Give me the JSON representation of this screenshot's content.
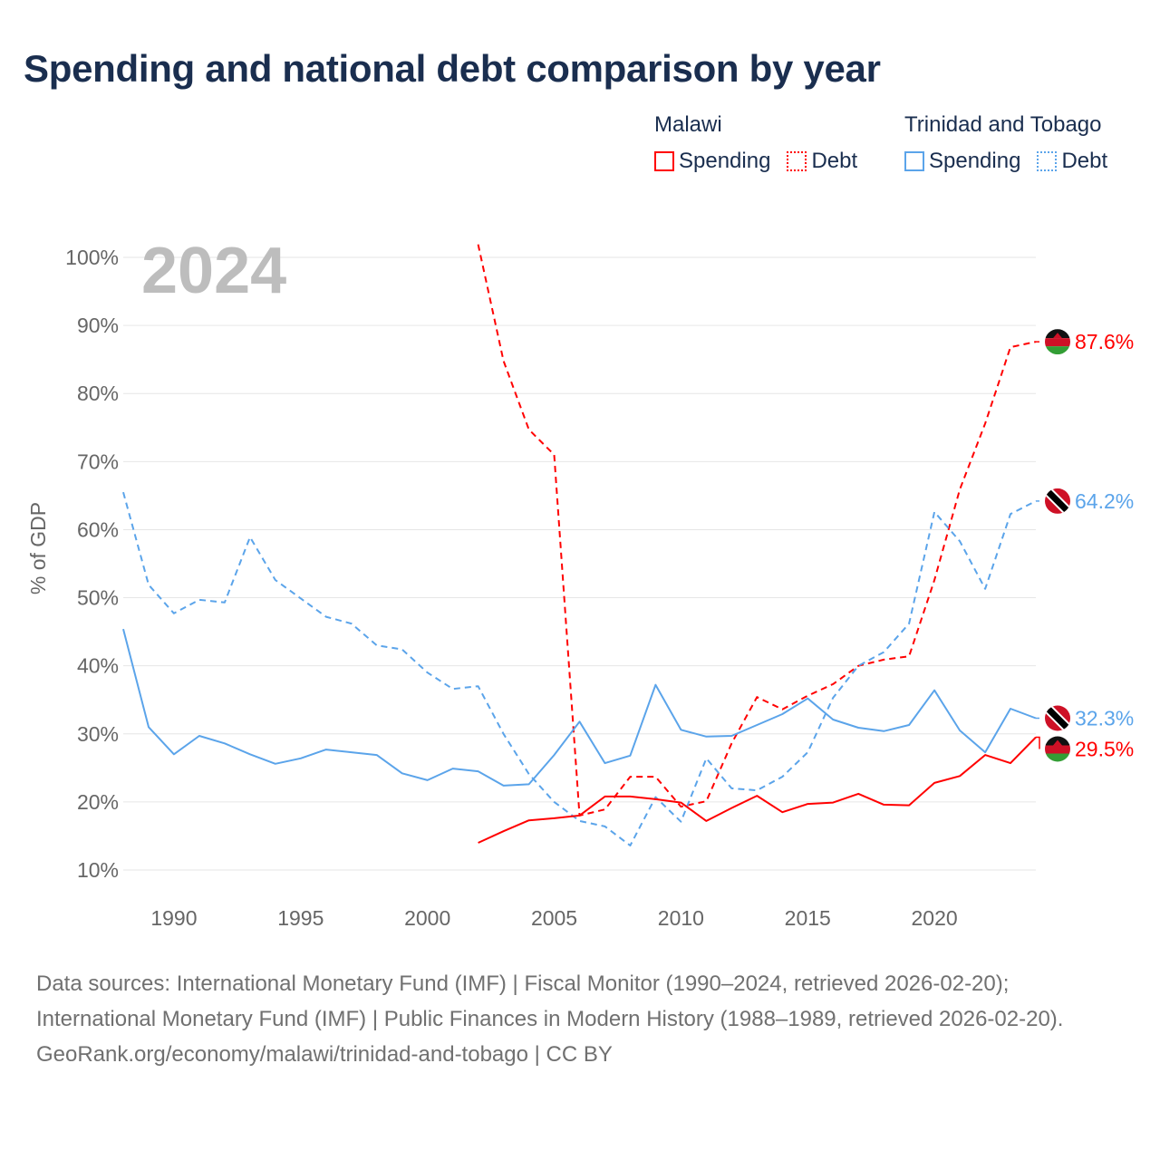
{
  "title": "Spending and national debt comparison by year",
  "legend": {
    "groups": [
      {
        "country": "Malawi",
        "items": [
          {
            "label": "Spending",
            "style": "solid"
          },
          {
            "label": "Debt",
            "style": "dotted"
          }
        ],
        "color": "#ff0000"
      },
      {
        "country": "Trinidad and Tobago",
        "items": [
          {
            "label": "Spending",
            "style": "solid"
          },
          {
            "label": "Debt",
            "style": "dotted"
          }
        ],
        "color": "#5ba4ea"
      }
    ]
  },
  "footer": {
    "sources": "Data sources: International Monetary Fund (IMF) | Fiscal Monitor (1990–2024, retrieved 2026-02-20); International Monetary Fund (IMF) | Public Finances in Modern History (1988–1989, retrieved 2026-02-20).",
    "credit": "GeoRank.org/economy/malawi/trinidad-and-tobago | CC BY"
  },
  "chart_data": {
    "type": "line",
    "year_label": "2024",
    "ylabel": "% of GDP",
    "ylim": [
      10,
      100
    ],
    "xlim": [
      1988,
      2024
    ],
    "grid": true,
    "yticks": [
      "10%",
      "20%",
      "30%",
      "40%",
      "50%",
      "60%",
      "70%",
      "80%",
      "90%",
      "100%"
    ],
    "ytick_values": [
      10,
      20,
      30,
      40,
      50,
      60,
      70,
      80,
      90,
      100
    ],
    "xticks": [
      "1990",
      "1995",
      "2000",
      "2005",
      "2010",
      "2015",
      "2020"
    ],
    "xtick_values": [
      1990,
      1995,
      2000,
      2005,
      2010,
      2015,
      2020
    ],
    "series": [
      {
        "name": "Malawi Debt",
        "country": "Malawi",
        "color": "#ff0000",
        "dash": true,
        "flag": "malawi",
        "end_label": "87.6%",
        "start": 2002,
        "values": [
          101.9,
          84.8,
          74.7,
          71.0,
          18.0,
          18.9,
          23.7,
          23.7,
          19.3,
          20.1,
          28.6,
          35.4,
          33.6,
          35.6,
          37.3,
          40.0,
          40.9,
          41.4,
          52.6,
          65.9,
          75.6,
          86.8,
          87.6
        ]
      },
      {
        "name": "Trinidad and Tobago Debt",
        "country": "Trinidad and Tobago",
        "color": "#5ba4ea",
        "dash": true,
        "flag": "tt",
        "end_label": "64.2%",
        "start": 1988,
        "values": [
          65.5,
          51.9,
          47.7,
          49.7,
          49.3,
          58.9,
          52.6,
          49.9,
          47.2,
          46.2,
          43.0,
          42.4,
          39.0,
          36.6,
          37.0,
          30.0,
          24.1,
          20.0,
          17.2,
          16.4,
          13.6,
          20.7,
          17.1,
          26.4,
          22.0,
          21.7,
          23.7,
          27.3,
          35.3,
          40.0,
          42.0,
          46.2,
          62.6,
          58.3,
          51.3,
          62.3,
          64.2
        ]
      },
      {
        "name": "Trinidad and Tobago Spending",
        "country": "Trinidad and Tobago",
        "color": "#5ba4ea",
        "dash": false,
        "flag": "tt",
        "end_label": "32.3%",
        "start": 1988,
        "values": [
          45.4,
          31.0,
          27.0,
          29.7,
          28.6,
          27.0,
          25.6,
          26.4,
          27.7,
          27.3,
          26.9,
          24.2,
          23.2,
          24.9,
          24.5,
          22.4,
          22.6,
          26.9,
          31.8,
          25.7,
          26.8,
          37.2,
          30.6,
          29.6,
          29.7,
          31.3,
          32.9,
          35.2,
          32.1,
          30.9,
          30.4,
          31.3,
          36.4,
          30.5,
          27.3,
          33.7,
          32.3
        ]
      },
      {
        "name": "Malawi Spending",
        "country": "Malawi",
        "color": "#ff0000",
        "dash": false,
        "flag": "malawi",
        "end_label": "29.5%",
        "start": 2002,
        "values": [
          14.0,
          15.7,
          17.3,
          17.6,
          18.0,
          20.8,
          20.8,
          20.4,
          19.9,
          17.2,
          19.1,
          20.9,
          18.5,
          19.7,
          19.9,
          21.2,
          19.6,
          19.5,
          22.8,
          23.8,
          26.9,
          25.7,
          29.5
        ]
      }
    ]
  }
}
